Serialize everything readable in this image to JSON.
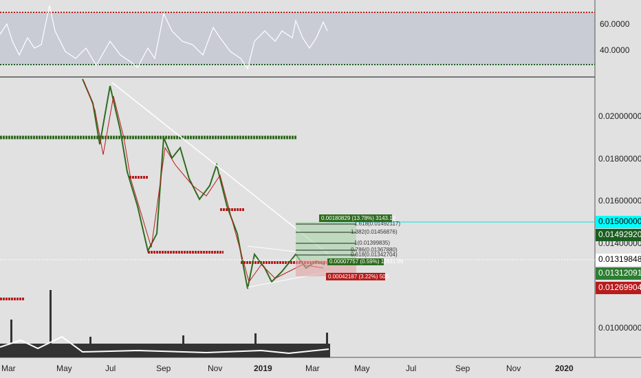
{
  "rsi_axis": [
    "60.0000",
    "40.0000"
  ],
  "price_axis": [
    "0.02000000",
    "0.01800000",
    "0.01600000",
    "0.01400000",
    "0.01000000"
  ],
  "time_axis": [
    "Mar",
    "May",
    "Jul",
    "Sep",
    "Nov",
    "2019",
    "Mar",
    "May",
    "Jul",
    "Sep",
    "Nov",
    "2020"
  ],
  "price_tags": [
    "0.01500000",
    "0.01492920",
    "0.01319848",
    "0.01312091",
    "0.01269904"
  ],
  "fib_levels": [
    "1.618(0.01492117)",
    "1.382(0.01456876)",
    "1(0.01399835)",
    "0.786(0.01367880)",
    "0.618(0.01342704)"
  ],
  "position": {
    "target": "0.00180829 (13.78%) 3143.18",
    "entry": "0.00007757 (0.59%) 11631.99",
    "stop": "0.00042187 (3.22%) 500"
  }
}
